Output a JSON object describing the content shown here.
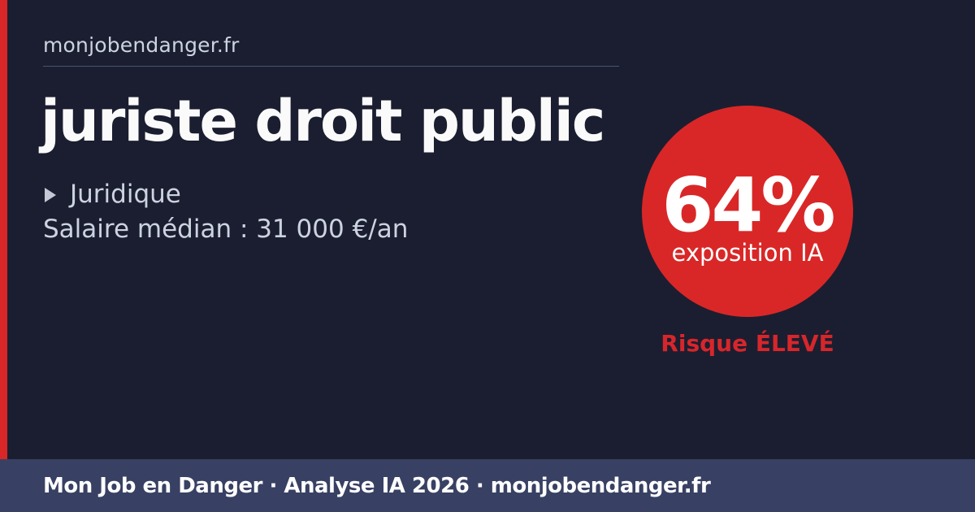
{
  "colors": {
    "background": "#1b1e30",
    "accent_red": "#d92727",
    "footer_bg": "#384163",
    "muted_text": "#ccd3e0",
    "divider": "#4a5474",
    "risk_label_red": "#d7262b",
    "title_text": "#fafafa",
    "circle_text": "#ffffff"
  },
  "header": {
    "site": "monjobendanger.fr"
  },
  "job": {
    "title": "juriste droit public",
    "category": "Juridique",
    "salary": "Salaire médian : 31 000 €/an"
  },
  "risk": {
    "percent": "64%",
    "caption": "exposition IA",
    "label": "Risque ÉLEVÉ"
  },
  "icons": {
    "category_bullet": "triangle-right-icon"
  },
  "footer": {
    "text": "Mon Job en Danger · Analyse IA 2026 · monjobendanger.fr"
  }
}
